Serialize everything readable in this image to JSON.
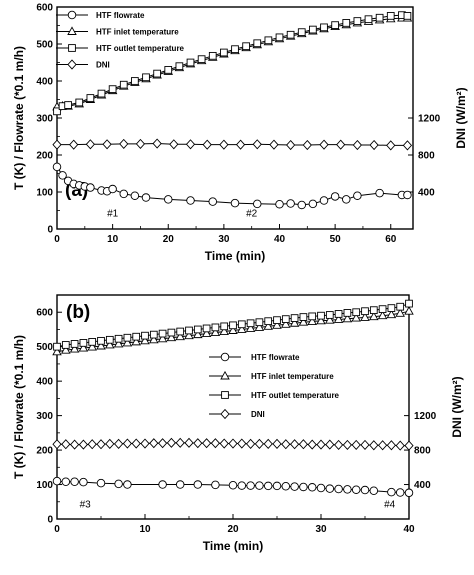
{
  "chart_data": [
    {
      "type": "line",
      "panel_label": "(a)",
      "xlabel": "Time (min)",
      "ylabel": "T (K) / Flowrate (*0.1 m/h)",
      "y2label": "DNI (W/m²)",
      "xlim": [
        0,
        64
      ],
      "ylim": [
        0,
        600
      ],
      "xticks": [
        0,
        10,
        20,
        30,
        40,
        50,
        60
      ],
      "yticks": [
        0,
        100,
        200,
        300,
        400,
        500,
        600
      ],
      "y2ticks": [
        400,
        800,
        1200
      ],
      "grid": false,
      "legend_position": "top-left",
      "annotations": [
        {
          "text": "#1",
          "x": 10,
          "y": 45
        },
        {
          "text": "#2",
          "x": 35,
          "y": 45
        }
      ],
      "series": [
        {
          "name": "HTF flowrate",
          "marker": "circle",
          "x": [
            0,
            1,
            2,
            3,
            4,
            5,
            6,
            8,
            9,
            10,
            12,
            14,
            16,
            20,
            24,
            28,
            32,
            36,
            40,
            42,
            44,
            46,
            48,
            50,
            52,
            54,
            58,
            62,
            63
          ],
          "y": [
            168,
            145,
            130,
            122,
            118,
            115,
            112,
            104,
            102,
            108,
            95,
            90,
            85,
            80,
            77,
            74,
            70,
            68,
            67,
            69,
            65,
            68,
            77,
            88,
            80,
            90,
            97,
            92,
            92
          ]
        },
        {
          "name": "HTF inlet temperature",
          "marker": "triangle",
          "x": [
            0,
            1,
            2,
            4,
            6,
            8,
            10,
            12,
            14,
            16,
            18,
            20,
            22,
            24,
            26,
            28,
            30,
            32,
            34,
            36,
            38,
            40,
            42,
            44,
            46,
            48,
            50,
            52,
            54,
            56,
            58,
            60,
            62,
            63
          ],
          "y": [
            330,
            332,
            332,
            338,
            350,
            362,
            374,
            386,
            396,
            406,
            416,
            426,
            436,
            446,
            455,
            464,
            473,
            482,
            490,
            498,
            506,
            514,
            521,
            528,
            535,
            541,
            547,
            552,
            557,
            561,
            565,
            568,
            570,
            570
          ]
        },
        {
          "name": "HTF outlet temperature",
          "marker": "square",
          "x": [
            0,
            1,
            2,
            4,
            6,
            8,
            10,
            12,
            14,
            16,
            18,
            20,
            22,
            24,
            26,
            28,
            30,
            32,
            34,
            36,
            38,
            40,
            42,
            44,
            46,
            48,
            50,
            52,
            54,
            56,
            58,
            60,
            62,
            63
          ],
          "y": [
            318,
            332,
            335,
            342,
            354,
            366,
            378,
            390,
            400,
            410,
            420,
            430,
            440,
            450,
            459,
            468,
            477,
            486,
            494,
            502,
            510,
            518,
            525,
            532,
            539,
            545,
            551,
            557,
            562,
            567,
            571,
            576,
            578,
            576
          ]
        },
        {
          "name": "DNI",
          "marker": "diamond",
          "x": [
            0,
            3,
            6,
            9,
            12,
            15,
            18,
            21,
            24,
            27,
            30,
            33,
            36,
            39,
            42,
            45,
            48,
            51,
            54,
            57,
            60,
            63
          ],
          "y": [
            228,
            228,
            229,
            229,
            230,
            230,
            231,
            229,
            229,
            228,
            228,
            228,
            229,
            228,
            227,
            227,
            228,
            228,
            227,
            227,
            226,
            226
          ]
        }
      ]
    },
    {
      "type": "line",
      "panel_label": "(b)",
      "xlabel": "Time (min)",
      "ylabel": "T (K) / Flowrate (*0.1 m/h)",
      "y2label": "DNI (W/m²)",
      "xlim": [
        0,
        40
      ],
      "ylim": [
        0,
        650
      ],
      "xticks": [
        0,
        10,
        20,
        30,
        40
      ],
      "yticks": [
        0,
        100,
        200,
        300,
        400,
        500,
        600
      ],
      "y2ticks": [
        400,
        800,
        1200
      ],
      "grid": false,
      "legend_position": "center-right",
      "annotations": [
        {
          "text": "#3",
          "x": 3.2,
          "y": 45
        },
        {
          "text": "#4",
          "x": 37.8,
          "y": 45
        }
      ],
      "series": [
        {
          "name": "HTF flowrate",
          "marker": "circle",
          "x": [
            0,
            1,
            2,
            3,
            5,
            7,
            8,
            12,
            14,
            16,
            18,
            20,
            21,
            22,
            23,
            24,
            25,
            26,
            27,
            28,
            29,
            30,
            31,
            32,
            33,
            34,
            35,
            36,
            38,
            39,
            40
          ],
          "y": [
            110,
            108,
            108,
            107,
            104,
            102,
            100,
            100,
            100,
            100,
            99,
            98,
            97,
            97,
            97,
            96,
            96,
            95,
            94,
            93,
            92,
            90,
            88,
            87,
            86,
            85,
            84,
            82,
            78,
            77,
            76
          ]
        },
        {
          "name": "HTF inlet temperature",
          "marker": "triangle",
          "x": [
            0,
            1,
            2,
            3,
            4,
            5,
            6,
            7,
            8,
            9,
            10,
            11,
            12,
            13,
            14,
            15,
            16,
            17,
            18,
            19,
            20,
            21,
            22,
            23,
            24,
            25,
            26,
            27,
            28,
            29,
            30,
            31,
            32,
            33,
            34,
            35,
            36,
            37,
            38,
            39,
            40
          ],
          "y": [
            485,
            490,
            493,
            496,
            499,
            502,
            505,
            508,
            511,
            514,
            517,
            520,
            523,
            526,
            529,
            532,
            535,
            538,
            541,
            544,
            547,
            550,
            553,
            556,
            559,
            562,
            565,
            568,
            571,
            573,
            575,
            577,
            579,
            581,
            583,
            585,
            587,
            590,
            593,
            597,
            603
          ]
        },
        {
          "name": "HTF outlet temperature",
          "marker": "square",
          "x": [
            0,
            1,
            2,
            3,
            4,
            5,
            6,
            7,
            8,
            9,
            10,
            11,
            12,
            13,
            14,
            15,
            16,
            17,
            18,
            19,
            20,
            21,
            22,
            23,
            24,
            25,
            26,
            27,
            28,
            29,
            30,
            31,
            32,
            33,
            34,
            35,
            36,
            37,
            38,
            39,
            40
          ],
          "y": [
            500,
            505,
            508,
            511,
            514,
            517,
            520,
            523,
            526,
            529,
            532,
            535,
            538,
            541,
            544,
            547,
            550,
            553,
            556,
            559,
            562,
            565,
            568,
            571,
            574,
            577,
            580,
            583,
            586,
            588,
            590,
            592,
            595,
            598,
            600,
            603,
            606,
            609,
            612,
            616,
            625
          ]
        },
        {
          "name": "DNI",
          "marker": "diamond",
          "x": [
            0,
            1,
            2,
            3,
            4,
            5,
            6,
            7,
            8,
            9,
            10,
            11,
            12,
            13,
            14,
            15,
            16,
            17,
            18,
            19,
            20,
            21,
            22,
            23,
            24,
            25,
            26,
            27,
            28,
            29,
            30,
            31,
            32,
            33,
            34,
            35,
            36,
            37,
            38,
            39,
            40
          ],
          "y": [
            217,
            217,
            216,
            216,
            217,
            217,
            218,
            218,
            219,
            219,
            219,
            220,
            220,
            221,
            221,
            221,
            220,
            220,
            220,
            219,
            219,
            219,
            218,
            218,
            218,
            218,
            217,
            217,
            217,
            216,
            216,
            216,
            215,
            215,
            215,
            215,
            214,
            214,
            214,
            213,
            213
          ]
        }
      ]
    }
  ]
}
